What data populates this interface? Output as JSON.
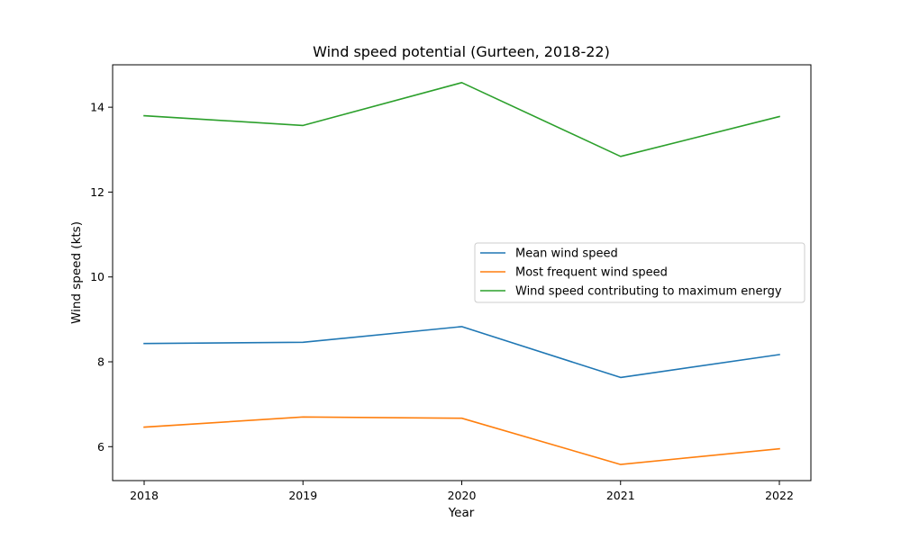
{
  "chart_data": {
    "type": "line",
    "title": "Wind speed potential (Gurteen, 2018-22)",
    "xlabel": "Year",
    "ylabel": "Wind speed (kts)",
    "categories": [
      "2018",
      "2019",
      "2020",
      "2021",
      "2022"
    ],
    "ylim": [
      5.2,
      15.0
    ],
    "yticks": [
      6,
      8,
      10,
      12,
      14
    ],
    "grid": false,
    "legend_position": "center-right",
    "series": [
      {
        "name": "Mean wind speed",
        "color": "#1f77b4",
        "values": [
          8.43,
          8.46,
          8.83,
          7.63,
          8.17
        ]
      },
      {
        "name": "Most frequent wind speed",
        "color": "#ff7f0e",
        "values": [
          6.46,
          6.7,
          6.67,
          5.58,
          5.95
        ]
      },
      {
        "name": "Wind speed contributing to maximum energy",
        "color": "#2ca02c",
        "values": [
          13.8,
          13.57,
          14.58,
          12.84,
          13.78
        ]
      }
    ]
  }
}
